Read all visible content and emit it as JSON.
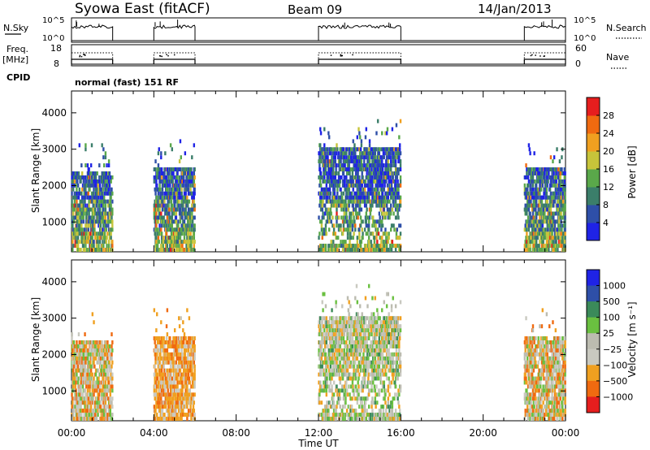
{
  "header": {
    "title": "Syowa East (fitACF)",
    "beam": "Beam 09",
    "date": "14/Jan/2013"
  },
  "status_panels": {
    "nsky_label": "N.Sky",
    "nsky_ticks": [
      "10^5",
      "10^0"
    ],
    "nsearch_label": "N.Search",
    "nsearch_ticks": [
      "10^5",
      "10^0"
    ],
    "freq_label": "Freq.",
    "freq_unit": "[MHz]",
    "freq_ticks": [
      "18",
      "8"
    ],
    "nave_label": "Nave",
    "nave_ticks": [
      "60",
      "0"
    ],
    "cpid_label": "CPID",
    "cpid_value": "normal (fast) 151 RF"
  },
  "colors": {
    "power_scale": [
      "#1f23e6",
      "#2e4fa8",
      "#3b7e6a",
      "#5aa84a",
      "#c7c43a",
      "#f0a020",
      "#f06a10",
      "#e61e1e"
    ],
    "velocity_scale": [
      "#e61e1e",
      "#f06a10",
      "#f0a020",
      "#c9c9c0",
      "#bcbcb0",
      "#6ac040",
      "#3b8a5a",
      "#2e4fa8",
      "#1f23e6"
    ]
  },
  "chart_data": [
    {
      "type": "heatmap",
      "title": "",
      "xlabel": "",
      "ylabel": "Slant Range [km]",
      "x_tick_labels": [
        "00:00",
        "04:00",
        "08:00",
        "12:00",
        "16:00",
        "20:00",
        "00:00"
      ],
      "xlim": [
        0,
        24
      ],
      "ylim": [
        180,
        4600
      ],
      "y_ticks": [
        1000,
        2000,
        3000,
        4000
      ],
      "colorbar": {
        "label": "Power [dB]",
        "range": [
          0,
          32
        ],
        "ticks": [
          "4",
          "8",
          "12",
          "16",
          "20",
          "24",
          "28"
        ]
      },
      "data_blocks_ut_hours": [
        [
          0,
          2
        ],
        [
          4,
          6
        ],
        [
          12,
          16
        ],
        [
          22,
          24
        ]
      ],
      "echo_regions": [
        {
          "t0": 0.0,
          "t1": 2.0,
          "r0": 200,
          "r1": 2300,
          "level": "mixed"
        },
        {
          "t0": 4.0,
          "t1": 6.0,
          "r0": 200,
          "r1": 2400,
          "level": "mixed"
        },
        {
          "t0": 12.0,
          "t1": 16.0,
          "r0": 200,
          "r1": 3000,
          "level": "mixed"
        },
        {
          "t0": 22.0,
          "t1": 24.0,
          "r0": 200,
          "r1": 2400,
          "level": "mixed"
        }
      ]
    },
    {
      "type": "heatmap",
      "title": "",
      "xlabel": "Time UT",
      "ylabel": "Slant Range [km]",
      "x_tick_labels": [
        "00:00",
        "04:00",
        "08:00",
        "12:00",
        "16:00",
        "20:00",
        "00:00"
      ],
      "xlim": [
        0,
        24
      ],
      "ylim": [
        180,
        4600
      ],
      "y_ticks": [
        1000,
        2000,
        3000,
        4000
      ],
      "colorbar": {
        "label": "Velocity [m s⁻¹]",
        "ticks": [
          "1000",
          "500",
          "100",
          "25",
          "−25",
          "−100",
          "−500",
          "−1000"
        ]
      },
      "data_blocks_ut_hours": [
        [
          0,
          2
        ],
        [
          4,
          6
        ],
        [
          12,
          16
        ],
        [
          22,
          24
        ]
      ]
    }
  ]
}
